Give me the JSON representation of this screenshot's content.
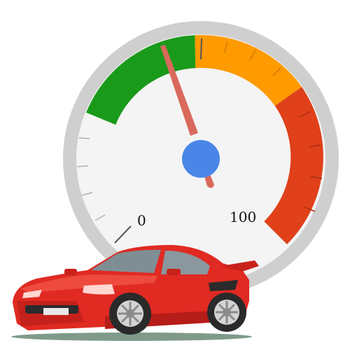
{
  "gauge": {
    "min_label": "0",
    "max_label": "100",
    "needle_value": 40,
    "colors": {
      "rim": "#cfcfcf",
      "face": "#f4f4f4",
      "green": "#1a9a1a",
      "orange": "#ff9a00",
      "red": "#e0401a",
      "needle": "#d9695c",
      "hub": "#4a86e8"
    }
  },
  "car": {
    "icon": "red-sports-car-icon",
    "colors": {
      "body": "#e02a22",
      "shadow": "#b51d18",
      "window": "#7f8e95",
      "ground": "#7f9a8a"
    }
  }
}
